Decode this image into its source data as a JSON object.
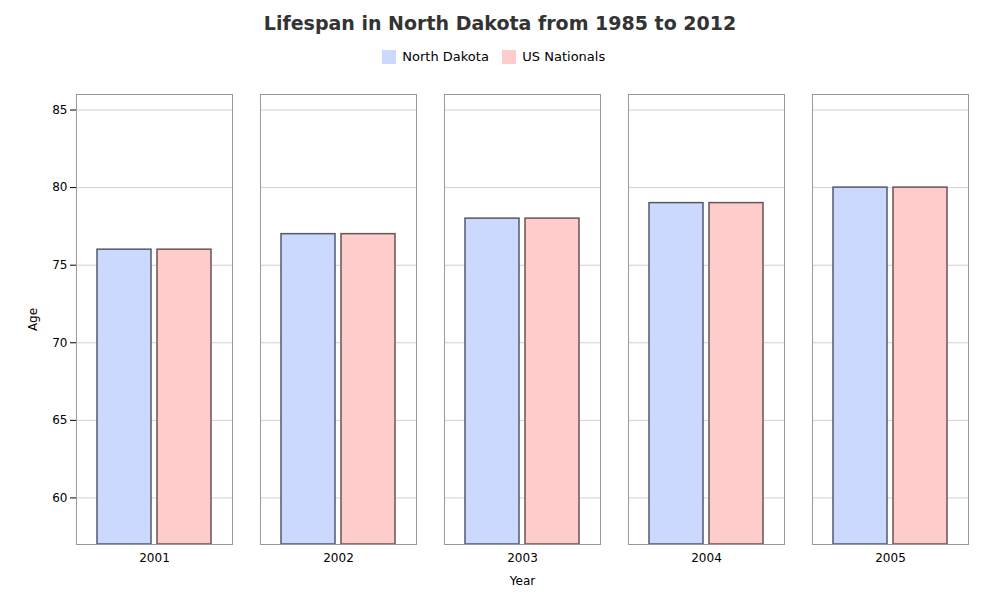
{
  "chart_data": {
    "type": "bar",
    "title": "Lifespan in North Dakota from 1985 to 2012",
    "xlabel": "Year",
    "ylabel": "Age",
    "categories": [
      2001,
      2002,
      2003,
      2004,
      2005
    ],
    "series": [
      {
        "name": "North Dakota",
        "color": "#ccd9ff",
        "values": [
          76,
          77,
          78,
          79,
          80
        ]
      },
      {
        "name": "US Nationals",
        "color": "#ffcccc",
        "values": [
          76,
          77,
          78,
          79,
          80
        ]
      }
    ],
    "ylim": [
      57,
      86
    ],
    "yticks": [
      60,
      65,
      70,
      75,
      80,
      85
    ],
    "grid": true,
    "legend": "top"
  }
}
